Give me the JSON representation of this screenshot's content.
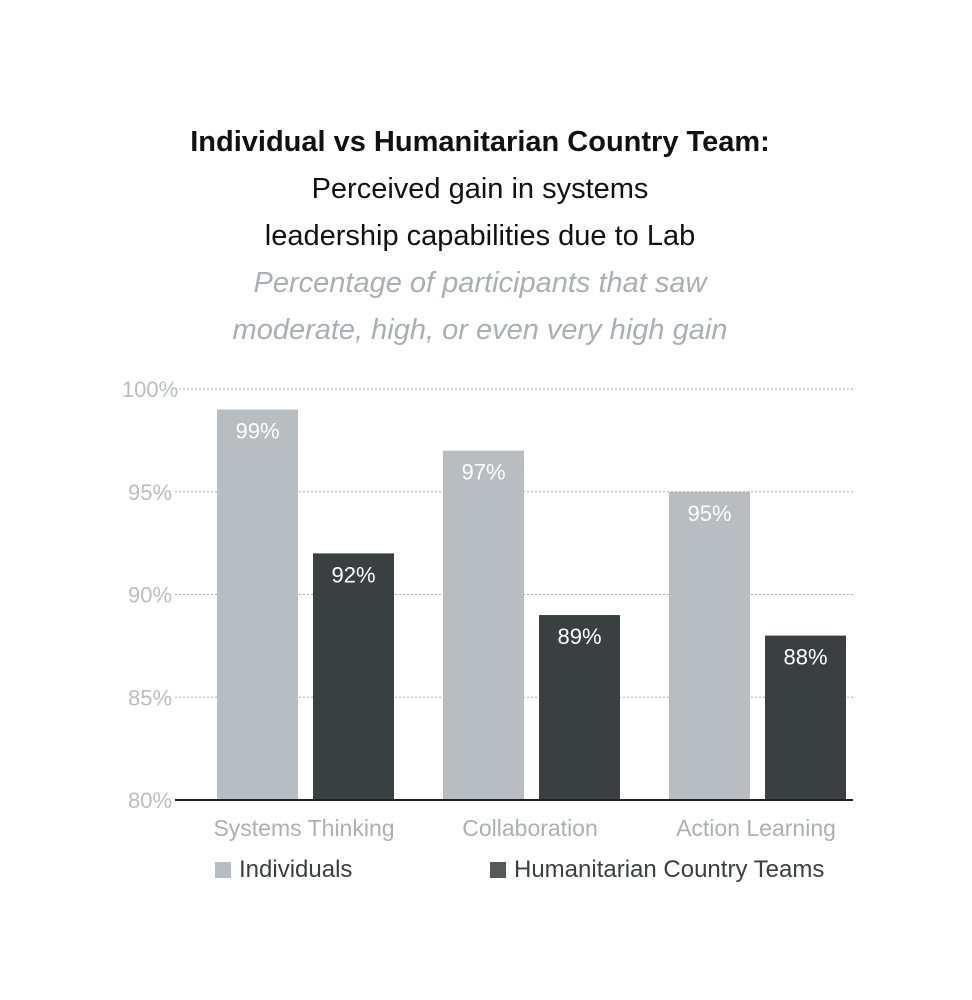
{
  "chart_data": {
    "type": "bar",
    "title": "Individual vs Humanitarian Country Team:",
    "subtitle_lines": [
      "Perceived gain in systems",
      "leadership capabilities due to Lab"
    ],
    "note_lines": [
      "Percentage of participants that saw",
      "moderate, high, or even very high gain"
    ],
    "categories": [
      "Systems Thinking",
      "Collaboration",
      "Action Learning"
    ],
    "series": [
      {
        "name": "Individuals",
        "values": [
          99,
          97,
          95
        ],
        "labels": [
          "99%",
          "97%",
          "95%"
        ],
        "color": "#b7bdc1"
      },
      {
        "name": "Humanitarian Country Teams",
        "values": [
          92,
          89,
          88
        ],
        "labels": [
          "92%",
          "89%",
          "88%"
        ],
        "color": "#3a3f41"
      }
    ],
    "ylim": [
      80,
      100
    ],
    "yticks": [
      80,
      85,
      90,
      95,
      100
    ],
    "ytick_labels": [
      "80%",
      "85%",
      "90%",
      "95%",
      "100%"
    ],
    "grid": true,
    "legend_position": "bottom"
  }
}
